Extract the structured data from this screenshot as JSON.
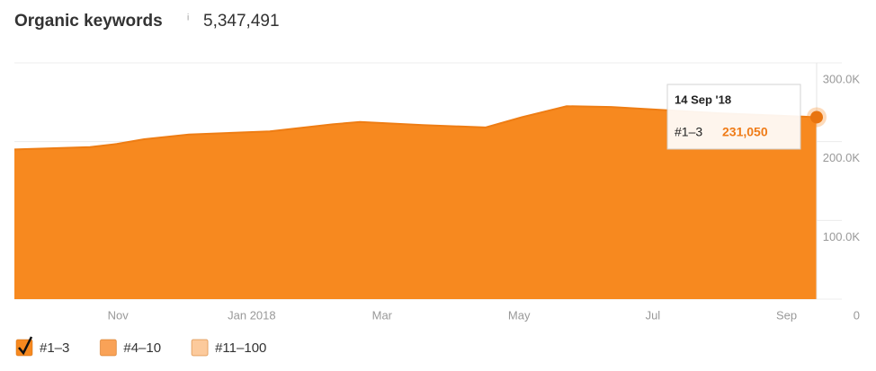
{
  "chart_data": {
    "type": "area",
    "title": "Organic keywords",
    "info": "i",
    "total": "5,347,491",
    "x": [
      0,
      1.13,
      1.53,
      1.94,
      2.61,
      3.82,
      4.76,
      5.17,
      6.11,
      7.05,
      7.59,
      8.26,
      8.93,
      9.74,
      10.55,
      12
    ],
    "series": [
      {
        "name": "#1–3",
        "color": "#f7891f",
        "values": [
          190000,
          193000,
          197000,
          203000,
          209000,
          213000,
          222000,
          225000,
          221000,
          218000,
          231000,
          245000,
          244000,
          240000,
          236000,
          231050
        ]
      }
    ],
    "xlim": [
      0,
      12
    ],
    "xticks": [
      {
        "value": 1.55,
        "label": "Nov"
      },
      {
        "value": 3.55,
        "label": "Jan 2018"
      },
      {
        "value": 5.5,
        "label": "Mar"
      },
      {
        "value": 7.55,
        "label": "May"
      },
      {
        "value": 9.55,
        "label": "Jul"
      },
      {
        "value": 11.55,
        "label": "Sep"
      }
    ],
    "ylim": [
      0,
      300000
    ],
    "yticks": [
      0,
      {
        "value": 100000,
        "label": "100.0K"
      },
      {
        "value": 200000,
        "label": "200.0K"
      },
      {
        "value": 300000,
        "label": "300.0K"
      }
    ],
    "grid": true,
    "tooltip": {
      "date": "14 Sep '18",
      "series": "#1–3",
      "value": 231050,
      "value_label": "231,050"
    },
    "legend": [
      {
        "name": "#1–3",
        "color": "#f7891f",
        "checked": true
      },
      {
        "name": "#4–10",
        "color": "#f9a257",
        "checked": false
      },
      {
        "name": "#11–100",
        "color": "#fcca9c",
        "checked": false
      }
    ]
  }
}
